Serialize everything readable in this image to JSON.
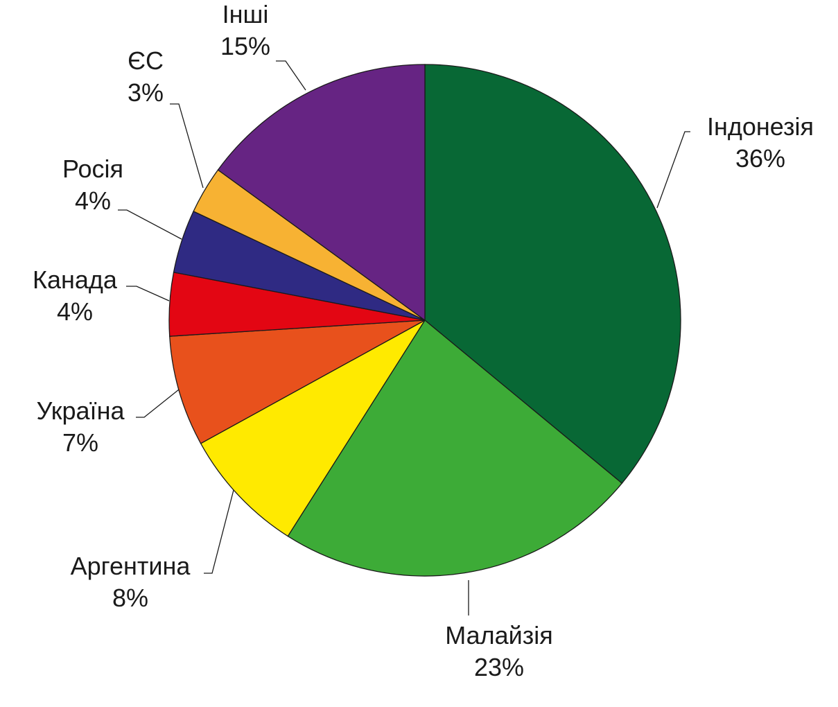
{
  "chart_data": {
    "type": "pie",
    "title": "",
    "start_angle_deg": 0,
    "direction": "clockwise",
    "slices": [
      {
        "label": "Індонезія",
        "value": 36,
        "value_label": "36%",
        "color": "#086835"
      },
      {
        "label": "Малайзія",
        "value": 23,
        "value_label": "23%",
        "color": "#3dab37"
      },
      {
        "label": "Аргентина",
        "value": 8,
        "value_label": "8%",
        "color": "#ffea00"
      },
      {
        "label": "Україна",
        "value": 7,
        "value_label": "7%",
        "color": "#e8511c"
      },
      {
        "label": "Канада",
        "value": 4,
        "value_label": "4%",
        "color": "#e30613"
      },
      {
        "label": "Росія",
        "value": 4,
        "value_label": "4%",
        "color": "#2f2a83"
      },
      {
        "label": "ЄС",
        "value": 3,
        "value_label": "3%",
        "color": "#f7b233"
      },
      {
        "label": "Інші",
        "value": 15,
        "value_label": "15%",
        "color": "#662483"
      }
    ]
  }
}
